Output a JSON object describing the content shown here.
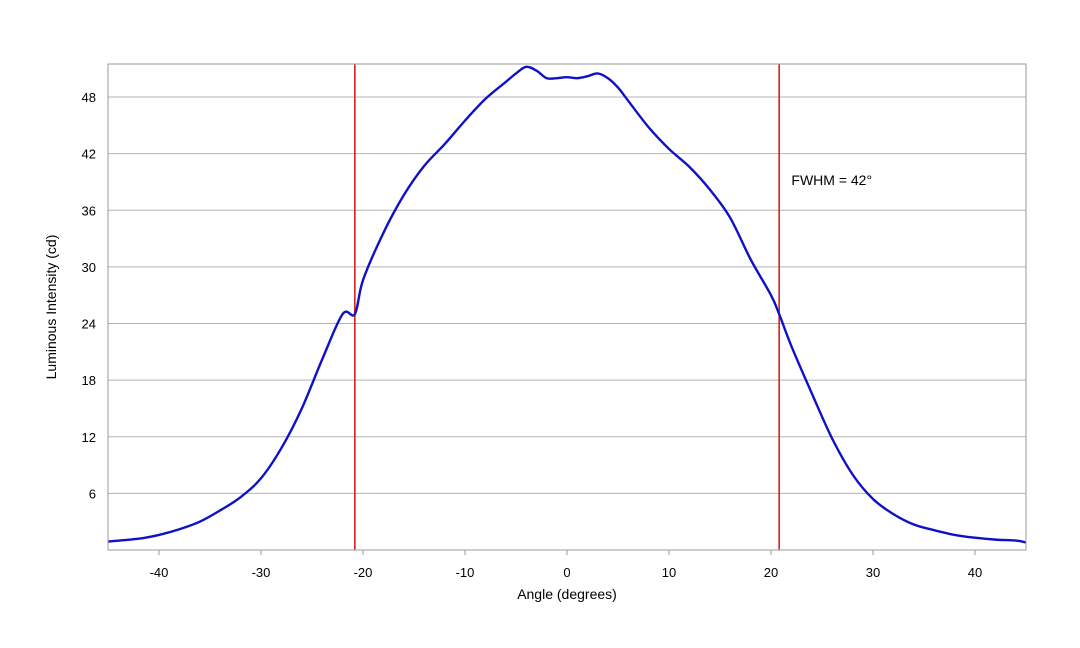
{
  "chart_data": {
    "type": "line",
    "title": "",
    "xlabel": "Angle (degrees)",
    "ylabel": "Luminous Intensity (cd)",
    "xlim": [
      -45,
      45
    ],
    "ylim": [
      0,
      51.5
    ],
    "xticks": [
      -40,
      -30,
      -20,
      -10,
      0,
      10,
      20,
      30,
      40
    ],
    "yticks": [
      6,
      12,
      18,
      24,
      30,
      36,
      42,
      48
    ],
    "grid": "horizontal",
    "series": [
      {
        "color": "#1010c8",
        "x": [
          -45,
          -42,
          -40,
          -38,
          -36,
          -34,
          -32,
          -30,
          -28,
          -26,
          -24,
          -22,
          -20.8,
          -20,
          -18,
          -16,
          -14,
          -12,
          -10,
          -8,
          -6,
          -5,
          -4,
          -3,
          -2,
          -1,
          0,
          1,
          2,
          3,
          4,
          5,
          6,
          8,
          10,
          12,
          14,
          16,
          18,
          20,
          20.8,
          22,
          24,
          26,
          28,
          30,
          32,
          34,
          36,
          38,
          40,
          42,
          44,
          45
        ],
        "y": [
          0.9,
          1.2,
          1.6,
          2.2,
          3.0,
          4.2,
          5.6,
          7.6,
          10.8,
          15.0,
          20.2,
          25.0,
          25.0,
          28.6,
          33.6,
          37.6,
          40.7,
          43.0,
          45.5,
          47.8,
          49.6,
          50.5,
          51.2,
          50.8,
          50.0,
          50.0,
          50.1,
          50.0,
          50.2,
          50.5,
          50.0,
          49.0,
          47.6,
          44.8,
          42.5,
          40.6,
          38.2,
          35.2,
          30.8,
          27.0,
          25.0,
          21.6,
          16.6,
          11.8,
          8.0,
          5.4,
          3.8,
          2.7,
          2.1,
          1.6,
          1.3,
          1.1,
          1.0,
          0.8
        ]
      }
    ],
    "vlines": [
      {
        "x": -20.8,
        "color": "#d42020"
      },
      {
        "x": 20.8,
        "color": "#d42020"
      }
    ],
    "annotations": [
      {
        "text": "FWHM = 42°",
        "x": 22.0,
        "y": 38.7
      }
    ]
  },
  "colors": {
    "grid": "#b4b4b4",
    "frame": "#9a9a9a",
    "curve": "#1010c8",
    "marker": "#d42020"
  }
}
